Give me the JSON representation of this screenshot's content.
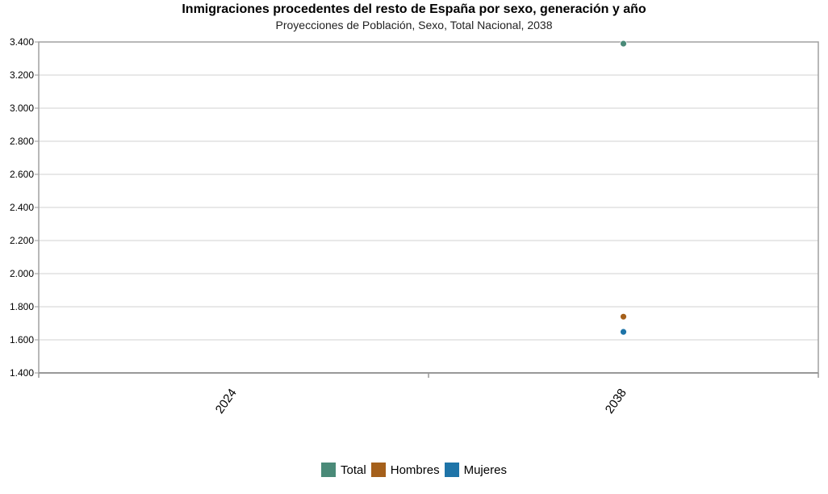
{
  "chart_data": {
    "type": "scatter",
    "title": "Inmigraciones procedentes del resto de España por sexo, generación y año",
    "subtitle": "Proyecciones de Población, Sexo, Total Nacional, 2038",
    "categories": [
      "2024",
      "2038"
    ],
    "ylim": [
      1400,
      3400
    ],
    "yticks": [
      1400,
      1600,
      1800,
      2000,
      2200,
      2400,
      2600,
      2800,
      3000,
      3200,
      3400
    ],
    "ytick_labels": [
      "1.400",
      "1.600",
      "1.800",
      "2.000",
      "2.200",
      "2.400",
      "2.600",
      "2.800",
      "3.000",
      "3.200",
      "3.400"
    ],
    "grid": true,
    "legend_position": "bottom",
    "series": [
      {
        "name": "Total",
        "color": "#4a8a78",
        "values": [
          null,
          3390
        ]
      },
      {
        "name": "Hombres",
        "color": "#a5601b",
        "values": [
          null,
          1740
        ]
      },
      {
        "name": "Mujeres",
        "color": "#1e74a8",
        "values": [
          null,
          1648
        ]
      }
    ]
  }
}
